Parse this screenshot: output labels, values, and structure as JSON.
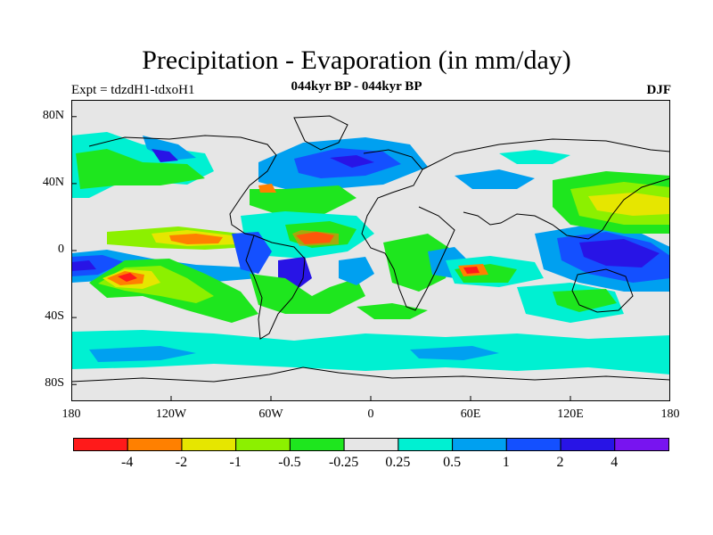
{
  "title": "Precipitation - Evaporation (in mm/day)",
  "subtitle_left": "Expt = tdzdH1-tdxoH1",
  "subtitle_center": "044kyr BP - 044kyr BP",
  "subtitle_right": "DJF",
  "map": {
    "background_color": "#e6e6e6",
    "lat_range": [
      -90,
      90
    ],
    "lon_range": [
      -180,
      180
    ],
    "y_ticks": [
      {
        "lat": 80,
        "label": "80N"
      },
      {
        "lat": 40,
        "label": "40N"
      },
      {
        "lat": 0,
        "label": "0"
      },
      {
        "lat": -40,
        "label": "40S"
      },
      {
        "lat": -80,
        "label": "80S"
      }
    ],
    "x_ticks": [
      {
        "lon": -180,
        "label": "180"
      },
      {
        "lon": -120,
        "label": "120W"
      },
      {
        "lon": -60,
        "label": "60W"
      },
      {
        "lon": 0,
        "label": "0"
      },
      {
        "lon": 60,
        "label": "60E"
      },
      {
        "lon": 120,
        "label": "120E"
      },
      {
        "lon": 180,
        "label": "180"
      }
    ]
  },
  "colorbar": {
    "colors": [
      "#ff1a1a",
      "#ff8000",
      "#e6e600",
      "#8cf000",
      "#1ee61e",
      "#e6e6e6",
      "#00f0d2",
      "#00a0f0",
      "#1450ff",
      "#2814e6",
      "#7814f0"
    ],
    "labels": [
      "-4",
      "-2",
      "-1",
      "-0.5",
      "-0.25",
      "0.25",
      "0.5",
      "1",
      "2",
      "4"
    ]
  }
}
